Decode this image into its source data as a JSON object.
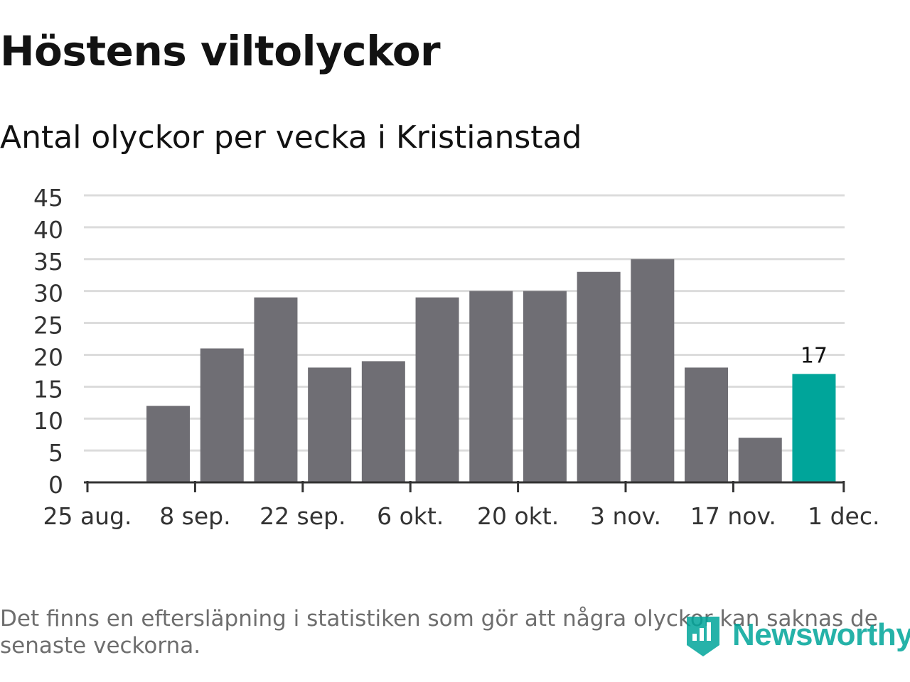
{
  "header": {
    "title": "Höstens viltolyckor",
    "subtitle": "Antal olyckor per vecka i Kristianstad"
  },
  "chart_data": {
    "type": "bar",
    "title": "Höstens viltolyckor",
    "subtitle": "Antal olyckor per vecka i Kristianstad",
    "xlabel": "",
    "ylabel": "",
    "ylim": [
      0,
      45
    ],
    "yticks": [
      0,
      5,
      10,
      15,
      20,
      25,
      30,
      35,
      40,
      45
    ],
    "xticks": [
      "25 aug.",
      "8 sep.",
      "22 sep.",
      "6 okt.",
      "20 okt.",
      "3 nov.",
      "17 nov.",
      "1 dec."
    ],
    "categories": [
      "25 aug.",
      "1 sep.",
      "8 sep.",
      "15 sep.",
      "22 sep.",
      "29 sep.",
      "6 okt.",
      "13 okt.",
      "20 okt.",
      "27 okt.",
      "3 nov.",
      "10 nov.",
      "17 nov.",
      "24 nov."
    ],
    "values": [
      0,
      12,
      21,
      29,
      18,
      19,
      29,
      30,
      30,
      33,
      35,
      18,
      7,
      17
    ],
    "highlight_index": 13,
    "data_labels": [
      {
        "index": 13,
        "text": "17"
      }
    ],
    "grid": true,
    "legend": "none",
    "colors": {
      "bar": "#6f6e74",
      "highlight": "#00a59a",
      "grid": "#dcdcdc",
      "axis": "#333333"
    }
  },
  "footer": {
    "note": "Det finns en eftersläpning i statistiken som gör att några olyckor kan saknas de senaste veckorna.",
    "logo_text": "Newsworthy",
    "logo_icon": "bar-chart-badge-icon"
  }
}
